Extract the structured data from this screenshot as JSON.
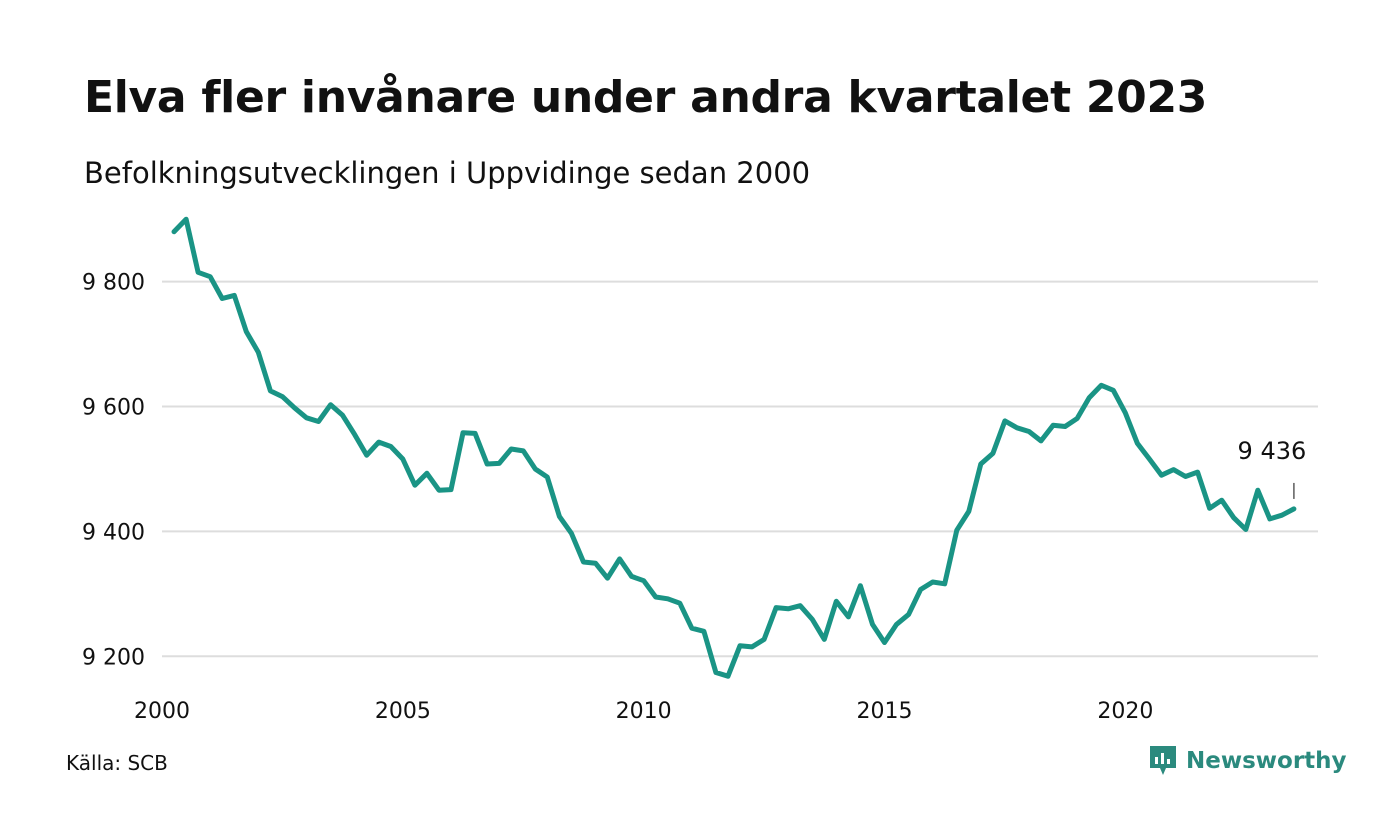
{
  "title": "Elva fler invånare under andra kvartalet 2023",
  "subtitle": "Befolkningsutvecklingen i Uppvidinge sedan 2000",
  "source": "Källa: SCB",
  "brand": {
    "name": "Newsworthy",
    "icon": "newsworthy-logo-icon"
  },
  "colors": {
    "line": "#1a9485",
    "grid": "#dddddd",
    "brand": "#2b8a7e"
  },
  "chart_data": {
    "type": "line",
    "xlim": [
      2000,
      2024
    ],
    "ylim": [
      9170,
      9910
    ],
    "x_ticks": [
      {
        "value": 2000,
        "label": "2000"
      },
      {
        "value": 2005,
        "label": "2005"
      },
      {
        "value": 2010,
        "label": "2010"
      },
      {
        "value": 2015,
        "label": "2015"
      },
      {
        "value": 2020,
        "label": "2020"
      }
    ],
    "y_ticks": [
      {
        "value": 9200,
        "label": "9 200"
      },
      {
        "value": 9400,
        "label": "9 400"
      },
      {
        "value": 9600,
        "label": "9 600"
      },
      {
        "value": 9800,
        "label": "9 800"
      }
    ],
    "grid": true,
    "end_label": "9 436",
    "series": [
      {
        "x": [
          2000.25,
          2000.5,
          2000.75,
          2001.0,
          2001.25,
          2001.5,
          2001.75,
          2002.0,
          2002.25,
          2002.5,
          2002.75,
          2003.0,
          2003.25,
          2003.5,
          2003.75,
          2004.0,
          2004.25,
          2004.5,
          2004.75,
          2005.0,
          2005.25,
          2005.5,
          2005.75,
          2006.0,
          2006.25,
          2006.5,
          2006.75,
          2007.0,
          2007.25,
          2007.5,
          2007.75,
          2008.0,
          2008.25,
          2008.5,
          2008.75,
          2009.0,
          2009.25,
          2009.5,
          2009.75,
          2010.0,
          2010.25,
          2010.5,
          2010.75,
          2011.0,
          2011.25,
          2011.5,
          2011.75,
          2012.0,
          2012.25,
          2012.5,
          2012.75,
          2013.0,
          2013.25,
          2013.5,
          2013.75,
          2014.0,
          2014.25,
          2014.5,
          2014.75,
          2015.0,
          2015.25,
          2015.5,
          2015.75,
          2016.0,
          2016.25,
          2016.5,
          2016.75,
          2017.0,
          2017.25,
          2017.5,
          2017.75,
          2018.0,
          2018.25,
          2018.5,
          2018.75,
          2019.0,
          2019.25,
          2019.5,
          2019.75,
          2020.0,
          2020.25,
          2020.5,
          2020.75,
          2021.0,
          2021.25,
          2021.5,
          2021.75,
          2022.0,
          2022.25,
          2022.5,
          2022.75,
          2023.0,
          2023.25,
          2023.5
        ],
        "values": [
          9880,
          9900,
          9815,
          9808,
          9773,
          9778,
          9720,
          9687,
          9625,
          9616,
          9598,
          9582,
          9576,
          9603,
          9586,
          9555,
          9522,
          9543,
          9536,
          9516,
          9474,
          9493,
          9466,
          9467,
          9558,
          9557,
          9508,
          9509,
          9532,
          9529,
          9500,
          9487,
          9424,
          9397,
          9351,
          9349,
          9325,
          9356,
          9328,
          9321,
          9295,
          9292,
          9285,
          9245,
          9240,
          9174,
          9168,
          9217,
          9215,
          9227,
          9278,
          9276,
          9281,
          9259,
          9227,
          9288,
          9263,
          9313,
          9251,
          9222,
          9251,
          9267,
          9307,
          9319,
          9316,
          9402,
          9432,
          9508,
          9525,
          9577,
          9566,
          9560,
          9545,
          9570,
          9568,
          9581,
          9614,
          9634,
          9626,
          9590,
          9541,
          9516,
          9490,
          9499,
          9488,
          9495,
          9437,
          9450,
          9422,
          9403,
          9466,
          9420,
          9426,
          9436
        ]
      }
    ]
  }
}
